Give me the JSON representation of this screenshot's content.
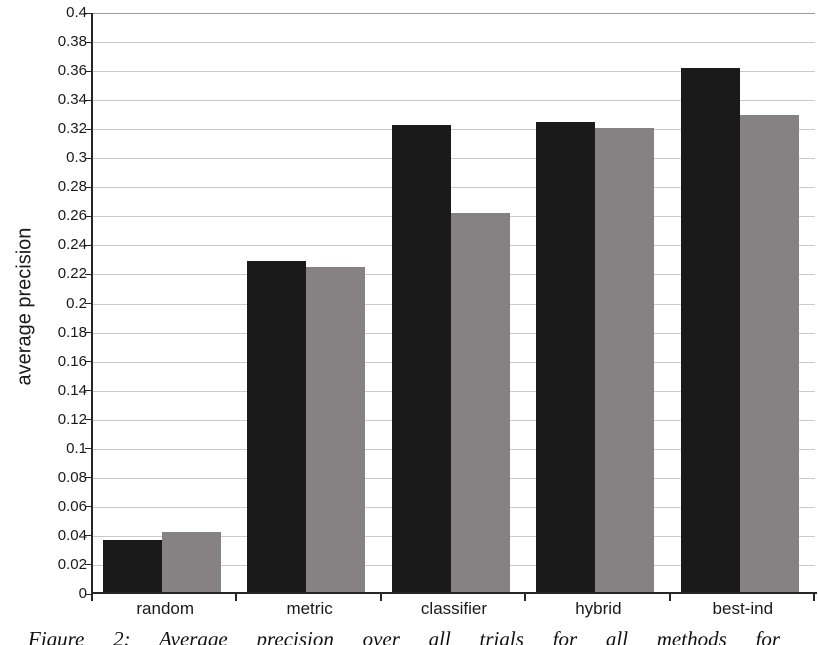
{
  "figure": {
    "ylabel": "average precision",
    "caption": "Figure 2: Average precision over all trials for all methods for",
    "colors": {
      "series_black": "#1a1a1a",
      "series_gray": "#868283",
      "gridline": "#c9c9c9",
      "axis": "#262626",
      "text": "#1a1a1a"
    }
  },
  "chart_data": {
    "type": "bar",
    "title": "",
    "xlabel": "",
    "ylabel": "average precision",
    "categories": [
      "random",
      "metric",
      "classifier",
      "hybrid",
      "best-ind"
    ],
    "series": [
      {
        "name": "black",
        "color": "#1a1a1a",
        "values": [
          0.037,
          0.229,
          0.323,
          0.325,
          0.362
        ]
      },
      {
        "name": "gray",
        "color": "#868283",
        "values": [
          0.043,
          0.225,
          0.262,
          0.321,
          0.33
        ]
      }
    ],
    "ylim": [
      0,
      0.4
    ],
    "ytick_step": 0.02,
    "ytick_labels": [
      "0",
      "0.02",
      "0.04",
      "0.06",
      "0.08",
      "0.1",
      "0.12",
      "0.14",
      "0.16",
      "0.18",
      "0.2",
      "0.22",
      "0.24",
      "0.26",
      "0.28",
      "0.3",
      "0.32",
      "0.34",
      "0.36",
      "0.38",
      "0.4"
    ],
    "grid": true,
    "legend": "none"
  }
}
